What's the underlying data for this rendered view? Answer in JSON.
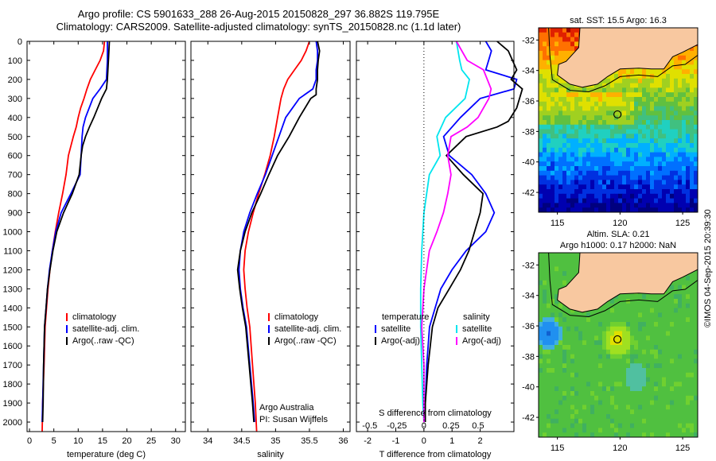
{
  "header": {
    "title_line1": "Argo profile: CS 5901633_288 26-Aug-2015 20150828_297 36.882S 119.795E",
    "title_line2": "Climatology: CARS2009. Satellite-adjusted climatology: synTS_20150828.nc (1.1d later)"
  },
  "colors": {
    "climatology": "#ff0000",
    "satellite": "#0000ff",
    "argo": "#000000",
    "satellite_salinity": "#00e5ee",
    "argo_salinity": "#ff00ff",
    "land": "#f8c8a0"
  },
  "stamp": "©IMOS 04-Sep-2015 20:39:30",
  "chart_data": [
    {
      "type": "line",
      "xlabel": "temperature (deg C)",
      "ylabel": "",
      "xlim": [
        -0.5,
        32
      ],
      "ylim": [
        2050,
        0
      ],
      "xticks": [
        0,
        5,
        10,
        15,
        20,
        25,
        30
      ],
      "yticks": [
        0,
        100,
        200,
        300,
        400,
        500,
        600,
        700,
        800,
        900,
        1000,
        1100,
        1200,
        1300,
        1400,
        1500,
        1600,
        1700,
        1800,
        1900,
        2000
      ],
      "legend": [
        "climatology",
        "satellite-adj. clim.",
        "Argo(..raw -QC)"
      ],
      "series": [
        {
          "name": "climatology",
          "color": "#ff0000",
          "points": [
            [
              15.4,
              0
            ],
            [
              15.2,
              50
            ],
            [
              14.5,
              100
            ],
            [
              13.5,
              150
            ],
            [
              12.5,
              200
            ],
            [
              11.8,
              250
            ],
            [
              11.2,
              300
            ],
            [
              10.5,
              350
            ],
            [
              10.0,
              400
            ],
            [
              9.6,
              450
            ],
            [
              9.0,
              500
            ],
            [
              8.5,
              550
            ],
            [
              8.0,
              600
            ],
            [
              7.5,
              700
            ],
            [
              6.8,
              800
            ],
            [
              6.0,
              900
            ],
            [
              5.3,
              1000
            ],
            [
              4.7,
              1100
            ],
            [
              4.2,
              1200
            ],
            [
              3.8,
              1300
            ],
            [
              3.5,
              1400
            ],
            [
              3.2,
              1500
            ],
            [
              3.0,
              1700
            ],
            [
              2.7,
              1900
            ],
            [
              2.6,
              2050
            ]
          ]
        },
        {
          "name": "satellite-adj. clim.",
          "color": "#0000ff",
          "points": [
            [
              16.0,
              0
            ],
            [
              16.0,
              100
            ],
            [
              15.8,
              200
            ],
            [
              14.5,
              250
            ],
            [
              13.0,
              300
            ],
            [
              11.5,
              400
            ],
            [
              11.0,
              450
            ],
            [
              10.8,
              500
            ],
            [
              10.6,
              600
            ],
            [
              10.4,
              700
            ],
            [
              8.5,
              800
            ],
            [
              6.5,
              900
            ],
            [
              5.4,
              1000
            ],
            [
              4.7,
              1100
            ],
            [
              4.1,
              1200
            ],
            [
              3.7,
              1300
            ],
            [
              3.4,
              1400
            ],
            [
              3.1,
              1500
            ],
            [
              2.9,
              1700
            ],
            [
              2.7,
              1900
            ],
            [
              2.6,
              2000
            ]
          ]
        },
        {
          "name": "Argo(..raw -QC)",
          "color": "#000000",
          "points": [
            [
              16.4,
              0
            ],
            [
              16.2,
              100
            ],
            [
              16.0,
              200
            ],
            [
              15.8,
              250
            ],
            [
              14.8,
              300
            ],
            [
              13.2,
              400
            ],
            [
              12.3,
              450
            ],
            [
              11.5,
              500
            ],
            [
              10.9,
              550
            ],
            [
              10.6,
              600
            ],
            [
              10.2,
              700
            ],
            [
              8.8,
              800
            ],
            [
              7.0,
              900
            ],
            [
              5.6,
              1000
            ],
            [
              4.8,
              1100
            ],
            [
              4.2,
              1200
            ],
            [
              3.7,
              1300
            ],
            [
              3.4,
              1400
            ],
            [
              3.1,
              1500
            ],
            [
              2.9,
              1700
            ],
            [
              2.8,
              1900
            ],
            [
              2.7,
              2000
            ]
          ]
        }
      ]
    },
    {
      "type": "line",
      "xlabel": "salinity",
      "ylabel": "",
      "xlim": [
        33.75,
        36.1
      ],
      "ylim": [
        2050,
        0
      ],
      "xticks": [
        34,
        34.5,
        35,
        35.5,
        36
      ],
      "legend": [
        "climatology",
        "satellite-adj. clim.",
        "Argo(..raw -QC)"
      ],
      "annotations": [
        "Argo Australia",
        "PI: Susan Wijffels"
      ],
      "series": [
        {
          "name": "climatology",
          "color": "#ff0000",
          "points": [
            [
              35.5,
              0
            ],
            [
              35.45,
              50
            ],
            [
              35.38,
              100
            ],
            [
              35.28,
              150
            ],
            [
              35.18,
              200
            ],
            [
              35.12,
              250
            ],
            [
              35.08,
              300
            ],
            [
              35.03,
              400
            ],
            [
              34.98,
              500
            ],
            [
              34.92,
              600
            ],
            [
              34.84,
              700
            ],
            [
              34.75,
              800
            ],
            [
              34.67,
              900
            ],
            [
              34.6,
              1000
            ],
            [
              34.55,
              1100
            ],
            [
              34.53,
              1200
            ],
            [
              34.55,
              1300
            ],
            [
              34.58,
              1400
            ],
            [
              34.62,
              1500
            ],
            [
              34.66,
              1700
            ],
            [
              34.7,
              1900
            ],
            [
              34.72,
              2050
            ]
          ]
        },
        {
          "name": "satellite-adj. clim.",
          "color": "#0000ff",
          "points": [
            [
              35.6,
              0
            ],
            [
              35.62,
              50
            ],
            [
              35.62,
              100
            ],
            [
              35.6,
              150
            ],
            [
              35.6,
              200
            ],
            [
              35.55,
              250
            ],
            [
              35.35,
              300
            ],
            [
              35.15,
              400
            ],
            [
              35.05,
              500
            ],
            [
              34.95,
              600
            ],
            [
              34.85,
              700
            ],
            [
              34.73,
              800
            ],
            [
              34.62,
              900
            ],
            [
              34.53,
              1000
            ],
            [
              34.48,
              1100
            ],
            [
              34.46,
              1200
            ],
            [
              34.48,
              1300
            ],
            [
              34.52,
              1400
            ],
            [
              34.57,
              1500
            ],
            [
              34.62,
              1700
            ],
            [
              34.67,
              1900
            ],
            [
              34.69,
              2000
            ]
          ]
        },
        {
          "name": "Argo(..raw -QC)",
          "color": "#000000",
          "points": [
            [
              35.62,
              0
            ],
            [
              35.65,
              50
            ],
            [
              35.63,
              100
            ],
            [
              35.62,
              150
            ],
            [
              35.62,
              200
            ],
            [
              35.6,
              250
            ],
            [
              35.6,
              280
            ],
            [
              35.52,
              300
            ],
            [
              35.35,
              400
            ],
            [
              35.2,
              500
            ],
            [
              35.03,
              600
            ],
            [
              34.9,
              700
            ],
            [
              34.78,
              800
            ],
            [
              34.65,
              900
            ],
            [
              34.55,
              1000
            ],
            [
              34.48,
              1100
            ],
            [
              34.44,
              1200
            ],
            [
              34.47,
              1300
            ],
            [
              34.51,
              1400
            ],
            [
              34.56,
              1500
            ],
            [
              34.61,
              1700
            ],
            [
              34.66,
              1900
            ],
            [
              34.68,
              2000
            ]
          ]
        }
      ]
    },
    {
      "type": "line",
      "xlabel": "T difference from climatology",
      "xlabel2": "S difference from climatology",
      "ylabel": "",
      "xlim": [
        -2.4,
        3.2
      ],
      "ylim": [
        2050,
        0
      ],
      "xticks_T": [
        -2,
        -1,
        0,
        1,
        2
      ],
      "xticks_S": [
        -0.5,
        -0.25,
        0,
        0.25,
        0.5
      ],
      "legend_groups": [
        {
          "heading": "temperature",
          "items": [
            "satellite",
            "Argo(-adj)"
          ]
        },
        {
          "heading": "salinity",
          "items": [
            "satellite",
            "Argo(-adj)"
          ]
        }
      ],
      "series": [
        {
          "name": "temperature satellite",
          "color": "#0000ff",
          "points": [
            [
              2.2,
              0
            ],
            [
              2.4,
              50
            ],
            [
              2.3,
              100
            ],
            [
              2.2,
              150
            ],
            [
              3.3,
              200
            ],
            [
              3.2,
              250
            ],
            [
              2.0,
              300
            ],
            [
              1.3,
              400
            ],
            [
              1.0,
              450
            ],
            [
              0.7,
              500
            ],
            [
              0.9,
              600
            ],
            [
              1.7,
              700
            ],
            [
              2.2,
              800
            ],
            [
              2.5,
              900
            ],
            [
              2.2,
              1000
            ],
            [
              1.5,
              1100
            ],
            [
              1.0,
              1200
            ],
            [
              0.6,
              1300
            ],
            [
              0.4,
              1400
            ],
            [
              0.2,
              1500
            ],
            [
              0.1,
              1700
            ],
            [
              0.05,
              1900
            ],
            [
              0.0,
              2000
            ]
          ]
        },
        {
          "name": "temperature Argo(-adj)",
          "color": "#000000",
          "points": [
            [
              2.6,
              0
            ],
            [
              3.0,
              50
            ],
            [
              3.3,
              150
            ],
            [
              3.1,
              200
            ],
            [
              3.5,
              250
            ],
            [
              3.3,
              350
            ],
            [
              3.0,
              420
            ],
            [
              2.6,
              450
            ],
            [
              1.5,
              500
            ],
            [
              0.8,
              600
            ],
            [
              1.4,
              700
            ],
            [
              2.1,
              800
            ],
            [
              2.0,
              900
            ],
            [
              1.8,
              1000
            ],
            [
              1.6,
              1100
            ],
            [
              1.3,
              1200
            ],
            [
              0.9,
              1300
            ],
            [
              0.5,
              1400
            ],
            [
              0.3,
              1500
            ],
            [
              0.15,
              1700
            ],
            [
              0.05,
              1900
            ],
            [
              0.05,
              2000
            ]
          ]
        },
        {
          "name": "salinity satellite",
          "color": "#00e5ee",
          "points": [
            [
              0.3,
              0
            ],
            [
              0.33,
              100
            ],
            [
              0.35,
              150
            ],
            [
              0.42,
              200
            ],
            [
              0.38,
              300
            ],
            [
              0.2,
              400
            ],
            [
              0.12,
              500
            ],
            [
              0.15,
              600
            ],
            [
              0.05,
              700
            ],
            [
              0.0,
              900
            ],
            [
              -0.02,
              1100
            ],
            [
              -0.03,
              1300
            ],
            [
              -0.03,
              1500
            ],
            [
              -0.02,
              1700
            ],
            [
              -0.01,
              1900
            ],
            [
              0.0,
              2000
            ]
          ]
        },
        {
          "name": "salinity Argo(-adj)",
          "color": "#ff00ff",
          "points": [
            [
              0.3,
              0
            ],
            [
              0.35,
              50
            ],
            [
              0.4,
              100
            ],
            [
              0.55,
              150
            ],
            [
              0.62,
              250
            ],
            [
              0.6,
              300
            ],
            [
              0.5,
              400
            ],
            [
              0.4,
              450
            ],
            [
              0.25,
              500
            ],
            [
              0.22,
              600
            ],
            [
              0.25,
              700
            ],
            [
              0.22,
              800
            ],
            [
              0.18,
              900
            ],
            [
              0.12,
              1000
            ],
            [
              0.05,
              1100
            ],
            [
              0.0,
              1300
            ],
            [
              -0.02,
              1500
            ],
            [
              0.0,
              1700
            ],
            [
              0.0,
              2000
            ]
          ]
        }
      ]
    },
    {
      "type": "heatmap",
      "title": "sat. SST: 15.5 Argo: 16.3",
      "xlim": [
        113.5,
        126.2
      ],
      "ylim": [
        -43.3,
        -31.2
      ],
      "xticks": [
        115,
        120,
        125
      ],
      "yticks": [
        -32,
        -34,
        -36,
        -38,
        -40,
        -42
      ],
      "marker": {
        "lon": 119.795,
        "lat": -36.882
      }
    },
    {
      "type": "heatmap",
      "title_line1": "Altim. SLA: 0.21",
      "title_line2": "Argo h1000: 0.17 h2000: NaN",
      "xlim": [
        113.5,
        126.2
      ],
      "ylim": [
        -43.3,
        -31.2
      ],
      "xticks": [
        115,
        120,
        125
      ],
      "yticks": [
        -32,
        -34,
        -36,
        -38,
        -40,
        -42
      ],
      "marker": {
        "lon": 119.795,
        "lat": -36.882
      }
    }
  ]
}
